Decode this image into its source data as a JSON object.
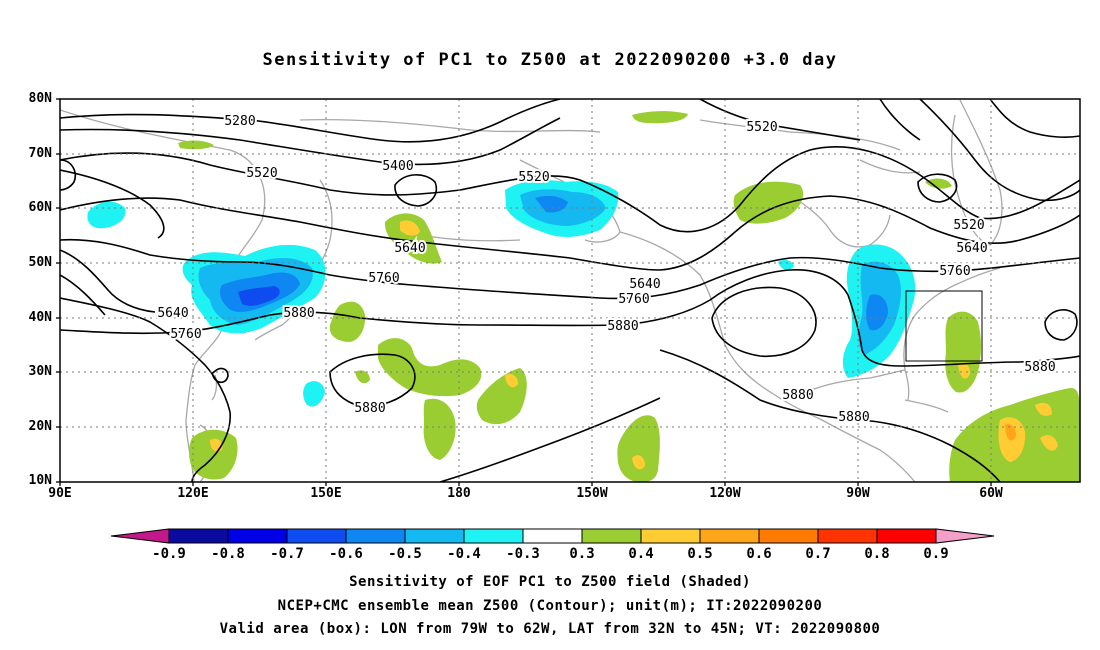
{
  "title": "Sensitivity of PC1 to Z500 at 2022090200 +3.0 day",
  "lat_labels": [
    "80N",
    "70N",
    "60N",
    "50N",
    "40N",
    "30N",
    "20N",
    "10N"
  ],
  "lon_labels": [
    "90E",
    "120E",
    "150E",
    "180",
    "150W",
    "120W",
    "90W",
    "60W"
  ],
  "contour_labels": [
    {
      "text": "5280"
    },
    {
      "text": "5400"
    },
    {
      "text": "5520"
    },
    {
      "text": "5520"
    },
    {
      "text": "5520"
    },
    {
      "text": "5520"
    },
    {
      "text": "5640"
    },
    {
      "text": "5640"
    },
    {
      "text": "5640"
    },
    {
      "text": "5640"
    },
    {
      "text": "5760"
    },
    {
      "text": "5760"
    },
    {
      "text": "5760"
    },
    {
      "text": "5760"
    },
    {
      "text": "5880"
    },
    {
      "text": "5880"
    },
    {
      "text": "5880"
    },
    {
      "text": "5880"
    },
    {
      "text": "5880"
    },
    {
      "text": "5880"
    }
  ],
  "colorbar": {
    "labels": [
      "-0.9",
      "-0.8",
      "-0.7",
      "-0.6",
      "-0.5",
      "-0.4",
      "-0.3",
      "0.3",
      "0.4",
      "0.5",
      "0.6",
      "0.7",
      "0.8",
      "0.9"
    ],
    "colors": [
      "#0a0a9e",
      "#0000e6",
      "#0e4cf0",
      "#0f87f2",
      "#15b9f2",
      "#1ff2f2",
      "#ffffff",
      "#9acd32",
      "#ffcc33",
      "#ffa51a",
      "#ff7a00",
      "#ff3300",
      "#ff0000"
    ],
    "low_end_color": "#c2188a",
    "high_end_color": "#f49fc8"
  },
  "footer": {
    "line1": "Sensitivity of EOF PC1 to Z500 field (Shaded)",
    "line2": "NCEP+CMC ensemble mean Z500 (Contour); unit(m); IT:2022090200",
    "line3": "Valid area (box): LON from 79W to 62W, LAT from 32N to 45N; VT: 2022090800"
  }
}
